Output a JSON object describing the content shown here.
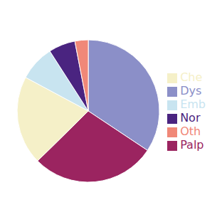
{
  "chart_data": {
    "type": "pie",
    "categories": [
      "Dys",
      "Palp",
      "Che",
      "Emb",
      "Nor",
      "Oth"
    ],
    "values": [
      34,
      28,
      20,
      8,
      6,
      3
    ],
    "colors": [
      "#8b8fc8",
      "#9b2460",
      "#f5f0c8",
      "#c8e4f0",
      "#4a2480",
      "#f08878"
    ],
    "legend": "right"
  }
}
